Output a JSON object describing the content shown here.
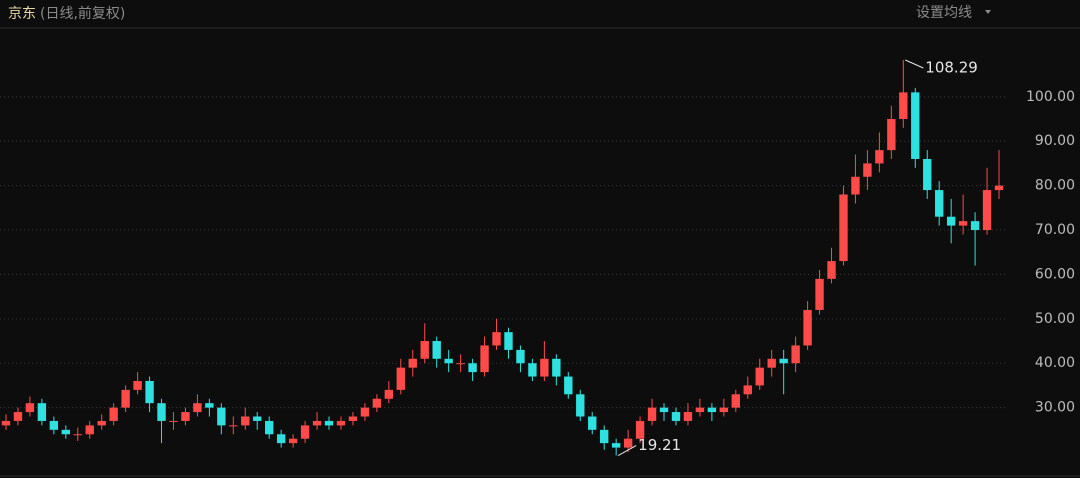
{
  "chart_data": {
    "type": "candlestick",
    "title": "京东",
    "subtitle": "(日线,前复权)",
    "button": "设置均线",
    "open": [
      26,
      27,
      29,
      31,
      27,
      25,
      24,
      24,
      26,
      27,
      30,
      34,
      36,
      31,
      27,
      27,
      29,
      31,
      30,
      26,
      26,
      28,
      27,
      24,
      22,
      23,
      26,
      27,
      26,
      27,
      28,
      30,
      32,
      34,
      39,
      41,
      45,
      41,
      40,
      40,
      38,
      44,
      47,
      43,
      40,
      37,
      41,
      37,
      33,
      28,
      25,
      22,
      21,
      23,
      27,
      30,
      29,
      27,
      29,
      30,
      29,
      30,
      33,
      35,
      39,
      41,
      40,
      44,
      52,
      59,
      63,
      78,
      82,
      85,
      88,
      95,
      101,
      86,
      79,
      73,
      71,
      72,
      70,
      79
    ],
    "high": [
      28.5,
      30,
      32.5,
      32,
      28,
      26,
      25.5,
      27,
      28.5,
      31,
      35,
      38,
      37,
      32,
      29,
      30,
      33,
      32,
      31,
      28,
      30,
      29,
      28,
      25,
      24,
      27,
      29,
      28,
      28,
      29,
      31,
      33,
      36,
      41,
      43,
      49,
      46,
      43,
      42,
      41,
      46,
      50,
      48,
      44,
      41,
      45,
      42,
      38,
      34,
      29,
      26,
      23,
      25,
      28,
      32,
      31,
      30,
      31,
      32,
      31,
      32,
      34,
      37,
      41,
      43,
      43,
      46,
      54,
      61,
      66,
      80,
      87,
      88,
      92,
      98,
      108.29,
      102,
      88,
      81,
      77,
      78,
      74,
      84,
      88
    ],
    "low": [
      25,
      26,
      28,
      26,
      24,
      23,
      22.5,
      23,
      25,
      26,
      29,
      33,
      29,
      22,
      25,
      26,
      28,
      28,
      24,
      24,
      25,
      25,
      23,
      21,
      21,
      22,
      25,
      25,
      25,
      26,
      27,
      29,
      31,
      33,
      37,
      40,
      39,
      38,
      38,
      36,
      37,
      43,
      41,
      38,
      36,
      36,
      35,
      32,
      27,
      24,
      20.5,
      19.21,
      20,
      22,
      26,
      27,
      26,
      26,
      28,
      27,
      28,
      29,
      32,
      34,
      37,
      33,
      38,
      43,
      51,
      58,
      62,
      76,
      79,
      83,
      86,
      93,
      84,
      77,
      71,
      67,
      69,
      62,
      69,
      77
    ],
    "close": [
      27,
      29,
      31,
      27,
      25,
      24,
      24,
      26,
      27,
      30,
      34,
      36,
      31,
      27,
      27,
      29,
      31,
      30,
      26,
      26,
      28,
      27,
      24,
      22,
      23,
      26,
      27,
      26,
      27,
      28,
      30,
      32,
      34,
      39,
      41,
      45,
      41,
      40,
      40,
      38,
      44,
      47,
      43,
      40,
      37,
      41,
      37,
      33,
      28,
      25,
      22,
      21,
      23,
      27,
      30,
      29,
      27,
      29,
      30,
      29,
      30,
      33,
      35,
      39,
      41,
      40,
      44,
      52,
      59,
      63,
      78,
      82,
      85,
      88,
      95,
      101,
      86,
      79,
      73,
      71,
      72,
      70,
      79,
      80
    ],
    "up_color": "#ff4a4a",
    "down_color": "#2fe0e0",
    "ylim": [
      14.6,
      115.5
    ],
    "yticks": [
      {
        "value": 30,
        "label": "30.00"
      },
      {
        "value": 40,
        "label": "40.00"
      },
      {
        "value": 50,
        "label": "50.00"
      },
      {
        "value": 60,
        "label": "60.00"
      },
      {
        "value": 70,
        "label": "70.00"
      },
      {
        "value": 80,
        "label": "80.00"
      },
      {
        "value": 90,
        "label": "90.00"
      },
      {
        "value": 100,
        "label": "100.00"
      }
    ],
    "grid": true,
    "annotations": [
      {
        "text": 108.29,
        "series": "high"
      },
      {
        "text": 19.21,
        "series": "low"
      }
    ]
  }
}
